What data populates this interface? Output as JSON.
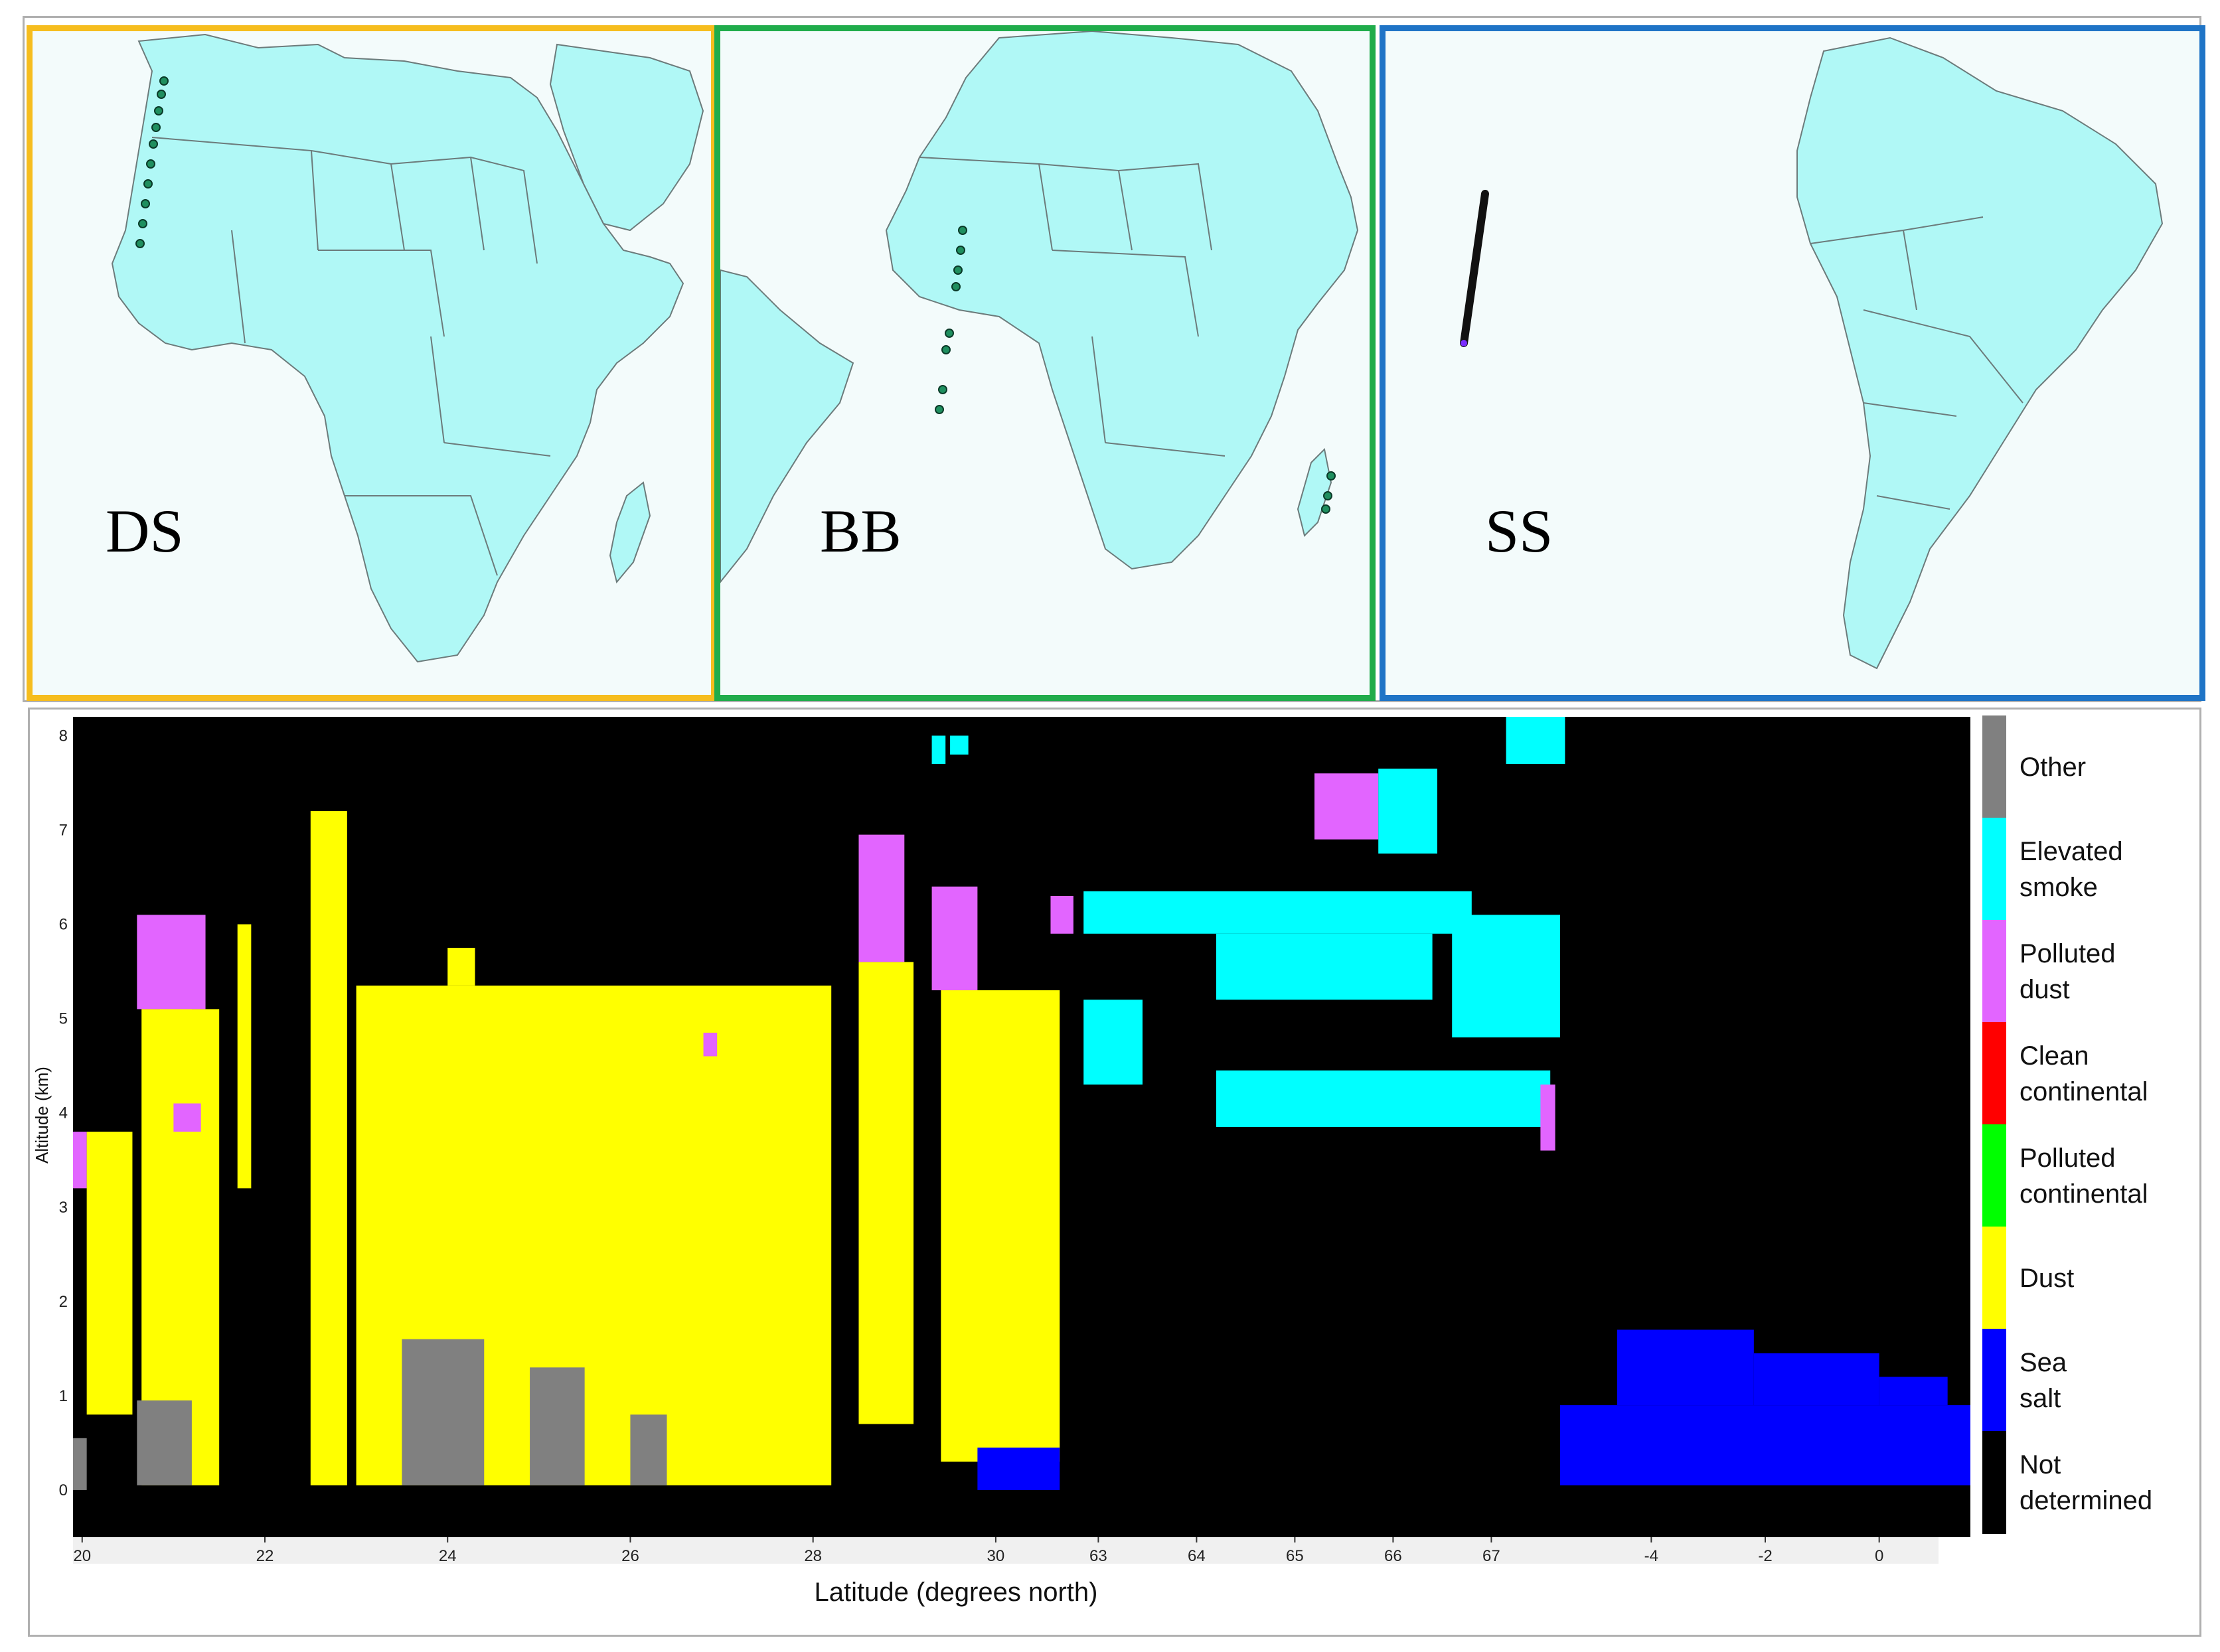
{
  "maps": [
    {
      "label": "DS",
      "border_color": "#f6bd1e",
      "continent": "africa",
      "track": "west-saharan-coast"
    },
    {
      "label": "BB",
      "border_color": "#20ac4b",
      "continent": "africa",
      "track": "gulf-of-guinea-and-mozambique"
    },
    {
      "label": "SS",
      "border_color": "#1f74c6",
      "continent": "south-america",
      "track": "mid-atlantic"
    }
  ],
  "map_colors": {
    "land": "#b0f8f6",
    "coast": "#6c7b7b",
    "track_point": "#1f8f5f"
  },
  "chart_data": {
    "type": "heatmap",
    "xlabel": "Latitude (degrees north)",
    "ylabel": "Altitude (km)",
    "ylim": [
      -0.5,
      8.2
    ],
    "yticks": [
      0,
      1,
      2,
      3,
      4,
      5,
      6,
      7,
      8
    ],
    "segments": [
      {
        "xticks": [
          20,
          22,
          24,
          26,
          28,
          30
        ],
        "xlim": [
          19.9,
          30.8
        ]
      },
      {
        "xticks": [
          63,
          64,
          65,
          66,
          67
        ],
        "xlim": [
          62.7,
          67.7
        ]
      },
      {
        "xticks": [
          -4,
          -2,
          0
        ],
        "xlim": [
          -5.6,
          1.6
        ]
      }
    ],
    "legend": {
      "placement": "right",
      "entries": [
        {
          "label": "Other",
          "color": "#808080"
        },
        {
          "label": "Elevated smoke",
          "color": "#00ffff"
        },
        {
          "label": "Polluted dust",
          "color": "#e265ff"
        },
        {
          "label": "Clean continental",
          "color": "#ff0000"
        },
        {
          "label": "Polluted continental",
          "color": "#00ff00"
        },
        {
          "label": "Dust",
          "color": "#ffff00"
        },
        {
          "label": "Sea salt",
          "color": "#0000ff"
        },
        {
          "label": "Not determined",
          "color": "#000000"
        }
      ]
    },
    "regions": [
      {
        "class": "Other",
        "seg": 0,
        "x0": 19.9,
        "x1": 20.05,
        "y0": 0,
        "y1": 0.55
      },
      {
        "class": "Polluted dust",
        "seg": 0,
        "x0": 19.9,
        "x1": 20.05,
        "y0": 3.2,
        "y1": 3.8
      },
      {
        "class": "Dust",
        "seg": 0,
        "x0": 20.05,
        "x1": 20.55,
        "y0": 0.8,
        "y1": 3.8
      },
      {
        "class": "Dust",
        "seg": 0,
        "x0": 20.65,
        "x1": 21.5,
        "y0": 0.05,
        "y1": 5.1
      },
      {
        "class": "Dust",
        "seg": 0,
        "x0": 20.85,
        "x1": 21.2,
        "y0": 5.1,
        "y1": 5.7
      },
      {
        "class": "Polluted dust",
        "seg": 0,
        "x0": 20.6,
        "x1": 21.35,
        "y0": 5.1,
        "y1": 6.1
      },
      {
        "class": "Polluted dust",
        "seg": 0,
        "x0": 21.0,
        "x1": 21.3,
        "y0": 3.8,
        "y1": 4.1
      },
      {
        "class": "Other",
        "seg": 0,
        "x0": 20.6,
        "x1": 21.2,
        "y0": 0.05,
        "y1": 0.95
      },
      {
        "class": "Dust",
        "seg": 0,
        "x0": 21.7,
        "x1": 21.85,
        "y0": 3.2,
        "y1": 6.0
      },
      {
        "class": "Dust",
        "seg": 0,
        "x0": 22.5,
        "x1": 22.9,
        "y0": 0.05,
        "y1": 7.2
      },
      {
        "class": "Dust",
        "seg": 0,
        "x0": 23.0,
        "x1": 28.2,
        "y0": 0.05,
        "y1": 5.35
      },
      {
        "class": "Dust",
        "seg": 0,
        "x0": 24.0,
        "x1": 24.3,
        "y0": 5.35,
        "y1": 5.75
      },
      {
        "class": "Other",
        "seg": 0,
        "x0": 23.5,
        "x1": 24.4,
        "y0": 0.05,
        "y1": 1.6
      },
      {
        "class": "Other",
        "seg": 0,
        "x0": 24.9,
        "x1": 25.5,
        "y0": 0.05,
        "y1": 1.3
      },
      {
        "class": "Other",
        "seg": 0,
        "x0": 26.0,
        "x1": 26.4,
        "y0": 0.05,
        "y1": 0.8
      },
      {
        "class": "Polluted dust",
        "seg": 0,
        "x0": 26.8,
        "x1": 26.95,
        "y0": 4.6,
        "y1": 4.85
      },
      {
        "class": "Dust",
        "seg": 0,
        "x0": 28.5,
        "x1": 29.1,
        "y0": 0.7,
        "y1": 5.6
      },
      {
        "class": "Polluted dust",
        "seg": 0,
        "x0": 28.5,
        "x1": 29.0,
        "y0": 5.6,
        "y1": 6.95
      },
      {
        "class": "Dust",
        "seg": 0,
        "x0": 29.4,
        "x1": 30.7,
        "y0": 0.3,
        "y1": 5.3
      },
      {
        "class": "Polluted dust",
        "seg": 0,
        "x0": 29.3,
        "x1": 29.8,
        "y0": 5.3,
        "y1": 6.4
      },
      {
        "class": "Polluted dust",
        "seg": 0,
        "x0": 30.6,
        "x1": 30.85,
        "y0": 5.9,
        "y1": 6.3
      },
      {
        "class": "Elevated smoke",
        "seg": 0,
        "x0": 29.3,
        "x1": 29.45,
        "y0": 7.7,
        "y1": 8.0
      },
      {
        "class": "Elevated smoke",
        "seg": 0,
        "x0": 29.5,
        "x1": 29.7,
        "y0": 7.8,
        "y1": 8.0
      },
      {
        "class": "Sea salt",
        "seg": 0,
        "x0": 29.8,
        "x1": 30.7,
        "y0": 0.0,
        "y1": 0.45
      },
      {
        "class": "Elevated smoke",
        "seg": 1,
        "x0": 62.85,
        "x1": 66.8,
        "y0": 5.9,
        "y1": 6.35
      },
      {
        "class": "Elevated smoke",
        "seg": 1,
        "x0": 64.2,
        "x1": 66.4,
        "y0": 5.2,
        "y1": 5.9
      },
      {
        "class": "Elevated smoke",
        "seg": 1,
        "x0": 66.6,
        "x1": 67.7,
        "y0": 4.8,
        "y1": 6.1
      },
      {
        "class": "Elevated smoke",
        "seg": 1,
        "x0": 62.85,
        "x1": 63.45,
        "y0": 4.3,
        "y1": 5.2
      },
      {
        "class": "Elevated smoke",
        "seg": 1,
        "x0": 64.2,
        "x1": 67.6,
        "y0": 3.85,
        "y1": 4.45
      },
      {
        "class": "Polluted dust",
        "seg": 1,
        "x0": 65.2,
        "x1": 65.85,
        "y0": 6.9,
        "y1": 7.6
      },
      {
        "class": "Elevated smoke",
        "seg": 1,
        "x0": 65.85,
        "x1": 66.45,
        "y0": 6.75,
        "y1": 7.65
      },
      {
        "class": "Elevated smoke",
        "seg": 1,
        "x0": 67.15,
        "x1": 67.75,
        "y0": 7.7,
        "y1": 8.2
      },
      {
        "class": "Polluted dust",
        "seg": 1,
        "x0": 67.5,
        "x1": 67.65,
        "y0": 3.6,
        "y1": 4.3
      },
      {
        "class": "Sea salt",
        "seg": 2,
        "x0": -5.6,
        "x1": 1.6,
        "y0": 0.05,
        "y1": 0.9
      },
      {
        "class": "Sea salt",
        "seg": 2,
        "x0": -4.6,
        "x1": -2.2,
        "y0": 0.9,
        "y1": 1.7
      },
      {
        "class": "Sea salt",
        "seg": 2,
        "x0": -2.2,
        "x1": 0.0,
        "y0": 0.9,
        "y1": 1.45
      },
      {
        "class": "Sea salt",
        "seg": 2,
        "x0": 0.0,
        "x1": 1.2,
        "y0": 0.9,
        "y1": 1.2
      }
    ]
  }
}
